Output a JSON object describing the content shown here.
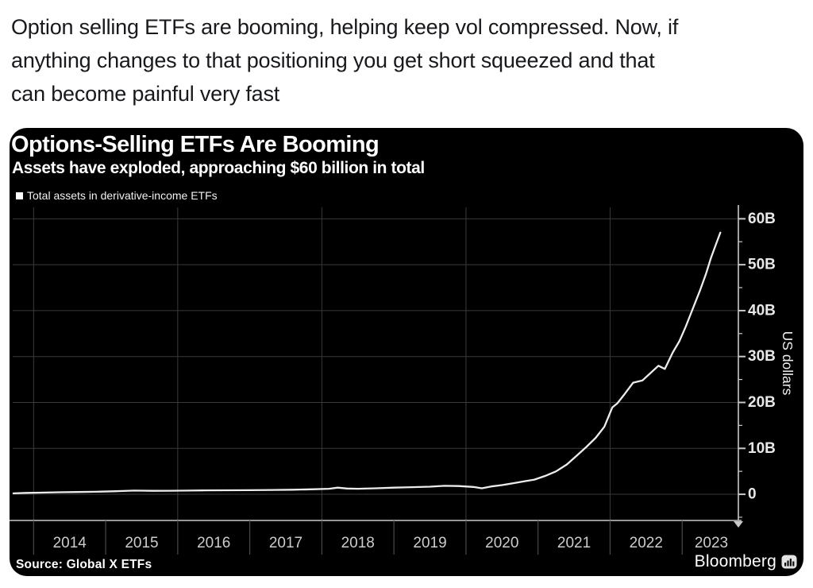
{
  "post": {
    "full_text": "Option selling ETFs are booming, helping keep vol compressed. Now, if anything changes to that positioning you get short squeezed and that can become painful very fast",
    "lines": [
      "Option selling ETFs are booming, helping keep vol compressed. Now, if",
      "anything changes to that positioning you get short squeezed and that",
      "can become painful very fast"
    ]
  },
  "chart": {
    "title": "Options-Selling ETFs Are Booming",
    "subtitle": "Assets have exploded, approaching $60 billion in total",
    "legend_label": "Total assets in derivative-income ETFs",
    "source": "Source: Global X ETFs",
    "brand": "Bloomberg",
    "brand_icon": "bar-chart-icon",
    "y_axis_unit": "US dollars",
    "colors": {
      "panel_background": "#000000",
      "post_text": "#17191c",
      "series_line": "#ececec",
      "gridline": "#3a3a3a",
      "axis": "#c8c8c8",
      "divider": "#4a4a4a",
      "tick_label": "#e8e8e8",
      "year_label": "#cccccc",
      "title_text": "#ffffff"
    }
  },
  "chart_data": {
    "type": "line",
    "title": "Options-Selling ETFs Are Booming",
    "subtitle": "Assets have exploded, approaching $60 billion in total",
    "source": "Source: Global X ETFs",
    "ylabel": "US dollars",
    "unit": "USD billions",
    "legend_position": "top-left",
    "grid": "horizontal 10B lines + vertical lines every 2 years",
    "xlim": [
      2013.71,
      2023.78
    ],
    "ylim": [
      -5.7,
      63
    ],
    "x_ticks": [
      2014,
      2015,
      2016,
      2017,
      2018,
      2019,
      2020,
      2021,
      2022,
      2023
    ],
    "x_tick_labels": [
      "2014",
      "2015",
      "2016",
      "2017",
      "2018",
      "2019",
      "2020",
      "2021",
      "2022",
      "2023"
    ],
    "x_gridlines": [
      2014,
      2016,
      2018,
      2020,
      2022
    ],
    "y_tick_values": [
      0,
      10,
      20,
      30,
      40,
      50,
      60
    ],
    "y_tick_labels": [
      "0",
      "10B",
      "20B",
      "30B",
      "40B",
      "50B",
      "60B"
    ],
    "y_minor_ticks": [
      -5,
      5,
      15,
      25,
      35,
      45,
      55
    ],
    "series": [
      {
        "name": "Total assets in derivative-income ETFs",
        "color": "#ececec",
        "x": [
          2013.72,
          2013.9,
          2014.1,
          2014.35,
          2014.6,
          2014.85,
          2015.1,
          2015.4,
          2015.65,
          2015.9,
          2016.15,
          2016.4,
          2016.7,
          2017.0,
          2017.3,
          2017.6,
          2017.9,
          2018.1,
          2018.22,
          2018.35,
          2018.5,
          2018.75,
          2019.0,
          2019.25,
          2019.5,
          2019.7,
          2019.9,
          2020.1,
          2020.22,
          2020.35,
          2020.5,
          2020.65,
          2020.8,
          2020.95,
          2021.1,
          2021.25,
          2021.4,
          2021.55,
          2021.67,
          2021.8,
          2021.92,
          2022.03,
          2022.1,
          2022.2,
          2022.32,
          2022.45,
          2022.56,
          2022.67,
          2022.76,
          2022.87,
          2022.96,
          2023.05,
          2023.15,
          2023.25,
          2023.33,
          2023.4,
          2023.47,
          2023.53
        ],
        "y": [
          0.2,
          0.3,
          0.35,
          0.45,
          0.5,
          0.55,
          0.65,
          0.8,
          0.75,
          0.78,
          0.8,
          0.85,
          0.88,
          0.9,
          0.95,
          1.0,
          1.1,
          1.2,
          1.45,
          1.25,
          1.2,
          1.3,
          1.45,
          1.55,
          1.65,
          1.85,
          1.8,
          1.6,
          1.3,
          1.7,
          2.0,
          2.4,
          2.8,
          3.2,
          4.0,
          5.0,
          6.5,
          8.6,
          10.3,
          12.3,
          14.7,
          18.9,
          19.8,
          21.8,
          24.3,
          24.8,
          26.4,
          28.0,
          27.3,
          30.9,
          33.3,
          36.5,
          40.5,
          44.5,
          48.0,
          51.5,
          54.5,
          57.0
        ]
      }
    ]
  }
}
